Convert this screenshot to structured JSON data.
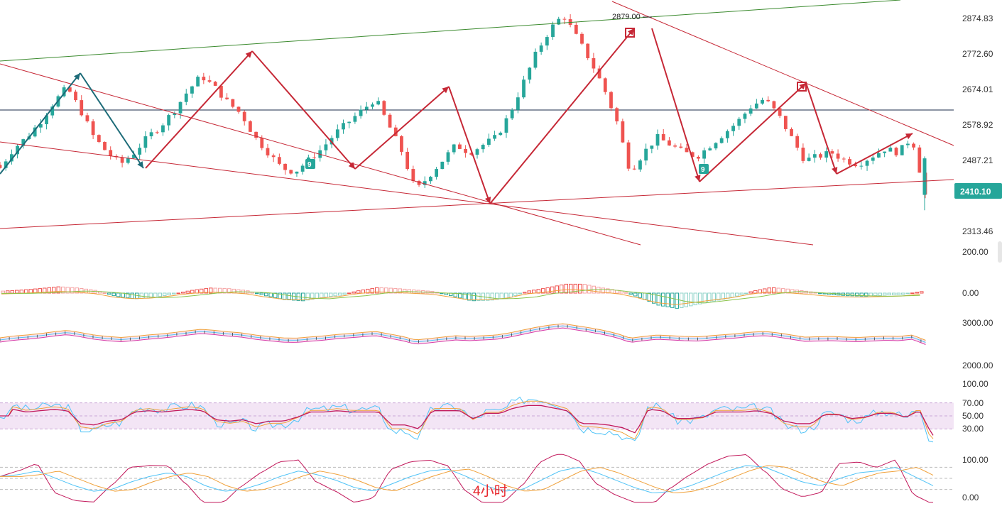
{
  "colors": {
    "up": "#26a69a",
    "down": "#ef5350",
    "trend_red": "#c62836",
    "trend_teal": "#1c6b78",
    "channel_green": "#3b8a2e",
    "hline": "#1a2a4a",
    "axis_text": "#333333",
    "price_badge": "#26a69a",
    "macd_pos_strong": "#ef5350",
    "macd_pos_weak": "#f5a3a3",
    "macd_neg_strong": "#26a69a",
    "macd_neg_weak": "#8fd3c9",
    "rsi_fill": "#f3e5f5"
  },
  "timeframe_label": "4小时",
  "last_price_label": "2410.10",
  "peak_price_label": "2879.00",
  "nine_marker_label": "9",
  "axes": {
    "main": {
      "ticks": [
        "2874.83",
        "2772.60",
        "2674.01",
        "2578.92",
        "2487.21",
        "2313.46"
      ]
    },
    "macd": {
      "ticks": [
        "200.00",
        "0.00"
      ]
    },
    "boll": {
      "ticks": [
        "3000.00",
        "2000.00"
      ]
    },
    "rsi": {
      "ticks": [
        "100.00",
        "70.00",
        "50.00",
        "30.00"
      ]
    },
    "kdj": {
      "ticks": [
        "100.00",
        "0.00"
      ]
    }
  },
  "chart_data": [
    {
      "type": "candlestick",
      "title": "",
      "timeframe": "4小时",
      "ylim": [
        2280,
        2900
      ],
      "last_price": 2410.1,
      "annotated_high": 2879.0,
      "close_path": [
        2480,
        2530,
        2560,
        2600,
        2650,
        2690,
        2630,
        2560,
        2520,
        2490,
        2520,
        2560,
        2590,
        2630,
        2680,
        2720,
        2690,
        2650,
        2620,
        2560,
        2520,
        2480,
        2470,
        2500,
        2530,
        2570,
        2600,
        2630,
        2660,
        2590,
        2520,
        2420,
        2460,
        2500,
        2540,
        2520,
        2540,
        2560,
        2620,
        2700,
        2780,
        2840,
        2879,
        2820,
        2760,
        2690,
        2600,
        2470,
        2520,
        2560,
        2540,
        2520,
        2510,
        2540,
        2570,
        2600,
        2640,
        2660,
        2620,
        2560,
        2500,
        2510,
        2520,
        2500,
        2490,
        2510,
        2530,
        2520,
        2560,
        2410
      ],
      "series": [
        {
          "name": "",
          "type": "trendline"
        }
      ]
    },
    {
      "type": "bar",
      "panel": "macd",
      "title": "",
      "ylim": [
        -120,
        220
      ],
      "values": [
        8,
        12,
        18,
        25,
        20,
        10,
        -12,
        -22,
        -18,
        -5,
        10,
        20,
        18,
        10,
        -10,
        -25,
        -30,
        -18,
        -8,
        10,
        22,
        18,
        12,
        6,
        -12,
        -30,
        -28,
        -18,
        8,
        20,
        35,
        35,
        20,
        8,
        -18,
        -48,
        -60,
        -45,
        -30,
        -15,
        8,
        22,
        15,
        6,
        -5,
        -10,
        -12,
        -8,
        -5,
        6
      ]
    },
    {
      "type": "line",
      "panel": "boll",
      "title": "",
      "ylim": [
        2000,
        3000
      ]
    },
    {
      "type": "line",
      "panel": "rsi",
      "title": "",
      "ylim": [
        0,
        100
      ],
      "bands": [
        30,
        70
      ],
      "mid": 50
    },
    {
      "type": "line",
      "panel": "kdj",
      "title": "",
      "ylim": [
        0,
        100
      ],
      "values": [
        55,
        60,
        70,
        50,
        30,
        15,
        20,
        40,
        55,
        65,
        55,
        30,
        15,
        20,
        35,
        55,
        70,
        60,
        45,
        25,
        15,
        35,
        55,
        70,
        75,
        55,
        30,
        15,
        20,
        45,
        70,
        80,
        65,
        45,
        25,
        10,
        15,
        30,
        50,
        70,
        85,
        80,
        60,
        40,
        30,
        50,
        65,
        70,
        80,
        55,
        30
      ]
    }
  ]
}
